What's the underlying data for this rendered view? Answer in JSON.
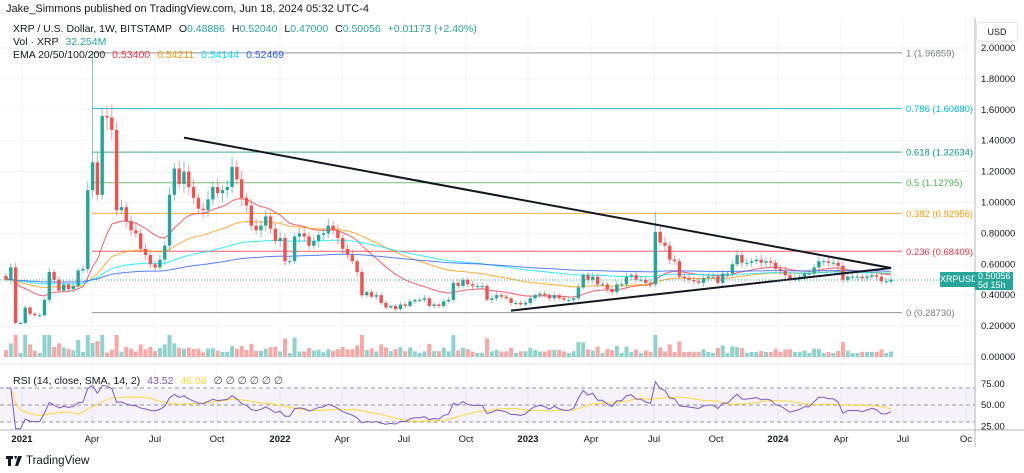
{
  "header": {
    "published": "Jake_Simmons published on TradingView.com, Jun 18, 2024 05:32 UTC-4",
    "symbol": "XRP / U.S. Dollar, 1W, BITSTAMP",
    "ohlc": {
      "o_label": "O",
      "o": "0.48886",
      "h_label": "H",
      "h": "0.52040",
      "l_label": "L",
      "l": "0.47000",
      "c_label": "C",
      "c": "0.50056",
      "change": "+0.01173 (+2.40%)"
    },
    "vol_label": "Vol · XRP",
    "vol_value": "32.254M",
    "ema_label": "EMA 20/50/100/200",
    "ema_values": [
      "0.53400",
      "0.54211",
      "0.54144",
      "0.52469"
    ]
  },
  "colors": {
    "up": "#26a69a",
    "down": "#ef5350",
    "ema20": "#f23645",
    "ema50": "#ff9800",
    "ema100": "#00e5ff",
    "ema200": "#2962ff",
    "rsi": "#7e57c2",
    "rsi_sma": "#fdd835"
  },
  "price_axis": {
    "currency": "USD",
    "ticks": [
      "2.00000",
      "1.80000",
      "1.60000",
      "1.40000",
      "1.20000",
      "1.00000",
      "0.80000",
      "0.60000",
      "0.40000",
      "0.20000",
      "0.00000"
    ]
  },
  "rsi_axis": {
    "ticks": [
      "75.00",
      "50.00",
      "25.00"
    ]
  },
  "rsi_legend": {
    "label": "RSI (14, close, SMA, 14, 2)",
    "value": "43.52",
    "sma_value": "46.08",
    "empty_marks": "∅ ∅ ∅ ∅ ∅ ∅"
  },
  "time_axis": [
    "2021",
    "Apr",
    "Jul",
    "Oct",
    "2022",
    "Apr",
    "Jul",
    "Oct",
    "2023",
    "Apr",
    "Jul",
    "Oct",
    "2024",
    "Apr",
    "Jul",
    "Oc"
  ],
  "last_price": {
    "symbol": "XRPUSD",
    "price": "0.50056",
    "countdown": "5d 15h"
  },
  "branding": "TradingView",
  "chart_data": {
    "type": "candlestick",
    "interval": "1W",
    "first_week": "Dec 2020",
    "last_week": "Jun 2024",
    "closes": [
      0.5,
      0.58,
      0.22,
      0.22,
      0.32,
      0.28,
      0.27,
      0.27,
      0.37,
      0.55,
      0.5,
      0.43,
      0.47,
      0.44,
      0.46,
      0.56,
      0.57,
      1.08,
      1.26,
      1.05,
      1.56,
      1.55,
      1.47,
      0.95,
      0.97,
      0.88,
      0.82,
      0.8,
      0.7,
      0.66,
      0.6,
      0.58,
      0.63,
      0.72,
      1.05,
      1.22,
      1.12,
      1.2,
      1.1,
      1.03,
      0.96,
      0.95,
      1.02,
      1.1,
      1.06,
      1.08,
      1.1,
      1.23,
      1.15,
      1.03,
      0.98,
      0.85,
      0.82,
      0.85,
      0.91,
      0.83,
      0.75,
      0.77,
      0.62,
      0.62,
      0.78,
      0.8,
      0.78,
      0.72,
      0.75,
      0.79,
      0.8,
      0.85,
      0.82,
      0.77,
      0.7,
      0.66,
      0.62,
      0.55,
      0.4,
      0.42,
      0.39,
      0.4,
      0.35,
      0.32,
      0.33,
      0.31,
      0.34,
      0.33,
      0.36,
      0.37,
      0.37,
      0.38,
      0.33,
      0.34,
      0.33,
      0.36,
      0.37,
      0.48,
      0.46,
      0.5,
      0.47,
      0.46,
      0.46,
      0.46,
      0.37,
      0.38,
      0.4,
      0.39,
      0.38,
      0.35,
      0.35,
      0.34,
      0.35,
      0.38,
      0.4,
      0.41,
      0.4,
      0.38,
      0.4,
      0.38,
      0.37,
      0.37,
      0.38,
      0.45,
      0.53,
      0.5,
      0.52,
      0.47,
      0.47,
      0.44,
      0.42,
      0.47,
      0.47,
      0.52,
      0.53,
      0.5,
      0.5,
      0.48,
      0.47,
      0.81,
      0.74,
      0.72,
      0.63,
      0.62,
      0.52,
      0.51,
      0.5,
      0.49,
      0.48,
      0.51,
      0.52,
      0.52,
      0.48,
      0.54,
      0.54,
      0.6,
      0.66,
      0.61,
      0.61,
      0.62,
      0.63,
      0.61,
      0.62,
      0.61,
      0.57,
      0.56,
      0.53,
      0.5,
      0.51,
      0.52,
      0.54,
      0.54,
      0.58,
      0.62,
      0.62,
      0.61,
      0.61,
      0.59,
      0.5,
      0.52,
      0.52,
      0.52,
      0.51,
      0.52,
      0.53,
      0.52,
      0.49,
      0.49,
      0.50056
    ],
    "notable_highs": [
      {
        "week_index": 18,
        "high": 1.96859
      },
      {
        "week_index": 135,
        "high": 0.94
      }
    ],
    "last_candle": {
      "open": 0.48886,
      "high": 0.5204,
      "low": 0.47,
      "close": 0.50056
    },
    "fibonacci": [
      {
        "label": "1 (1.96859)",
        "value": 1.96859,
        "color": "#787b86"
      },
      {
        "label": "0.786 (1.60880)",
        "value": 1.6088,
        "color": "#00bcd4"
      },
      {
        "label": "0.618 (1.32634)",
        "value": 1.32634,
        "color": "#089981"
      },
      {
        "label": "0.5 (1.12795)",
        "value": 1.12795,
        "color": "#4caf50"
      },
      {
        "label": "0.382 (0.92956)",
        "value": 0.92956,
        "color": "#ff9800"
      },
      {
        "label": "0.236 (0.68409)",
        "value": 0.68409,
        "color": "#f23645"
      },
      {
        "label": "0 (0.28730)",
        "value": 0.2873,
        "color": "#787b86"
      }
    ],
    "trendlines": [
      {
        "from": {
          "week_index": 37,
          "price": 1.42
        },
        "to": {
          "week_index": 184,
          "price": 0.576
        }
      },
      {
        "from": {
          "week_index": 105,
          "price": 0.3
        },
        "to": {
          "week_index": 184,
          "price": 0.576
        }
      }
    ],
    "indicators": [
      "Volume",
      "EMA 20",
      "EMA 50",
      "EMA 100",
      "EMA 200",
      "RSI 14",
      "RSI SMA 14"
    ],
    "ylim": [
      0,
      2.0
    ],
    "rsi_bands": [
      30,
      50,
      70
    ],
    "grid": true
  }
}
